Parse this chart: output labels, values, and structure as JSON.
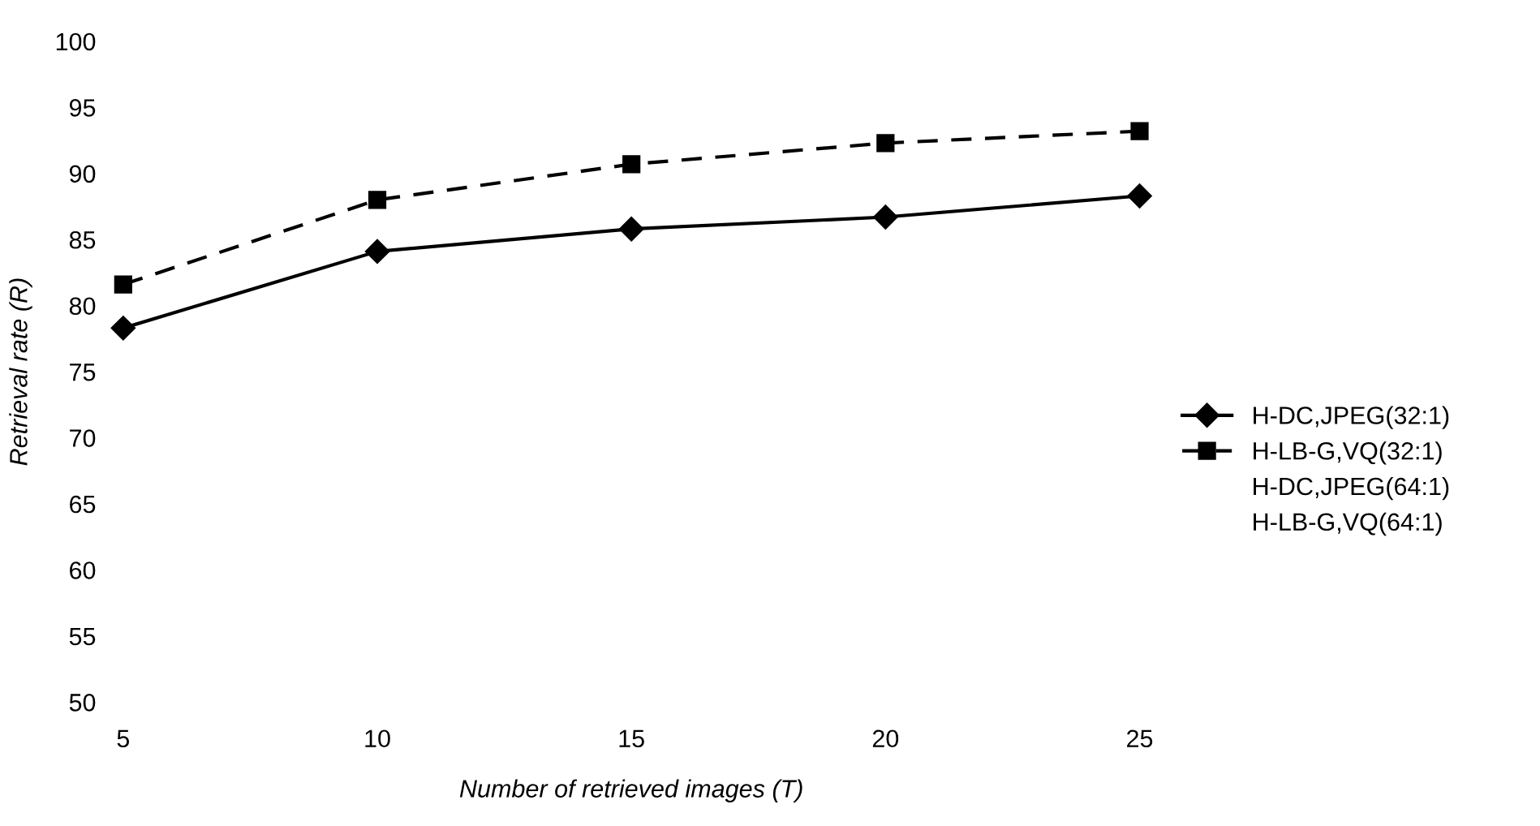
{
  "chart_data": {
    "type": "line",
    "xlabel": "Number of retrieved images (T)",
    "ylabel": "Retrieval rate (R)",
    "x": [
      5,
      10,
      15,
      20,
      25
    ],
    "series": [
      {
        "name": "H-DC,JPEG(32:1)",
        "color": "#000000",
        "marker": "diamond",
        "line_style": "solid",
        "values": [
          78.3,
          84.1,
          85.8,
          86.7,
          88.3
        ]
      },
      {
        "name": "H-LB-G,VQ(32:1)",
        "color": "#000000",
        "marker": "square",
        "line_style": "dashed",
        "values": [
          81.6,
          88.0,
          90.7,
          92.3,
          93.2
        ]
      },
      {
        "name": "H-DC,JPEG(64:1)",
        "values": [
          null,
          null,
          null,
          null,
          null
        ]
      },
      {
        "name": "H-LB-G,VQ(64:1)",
        "values": [
          null,
          null,
          null,
          null,
          null
        ]
      }
    ],
    "xlim": [
      5,
      25
    ],
    "ylim": [
      50,
      100
    ],
    "xticks": [
      5,
      10,
      15,
      20,
      25
    ],
    "yticks": [
      50,
      55,
      60,
      65,
      70,
      75,
      80,
      85,
      90,
      95,
      100
    ],
    "grid": false,
    "legend": "right"
  }
}
